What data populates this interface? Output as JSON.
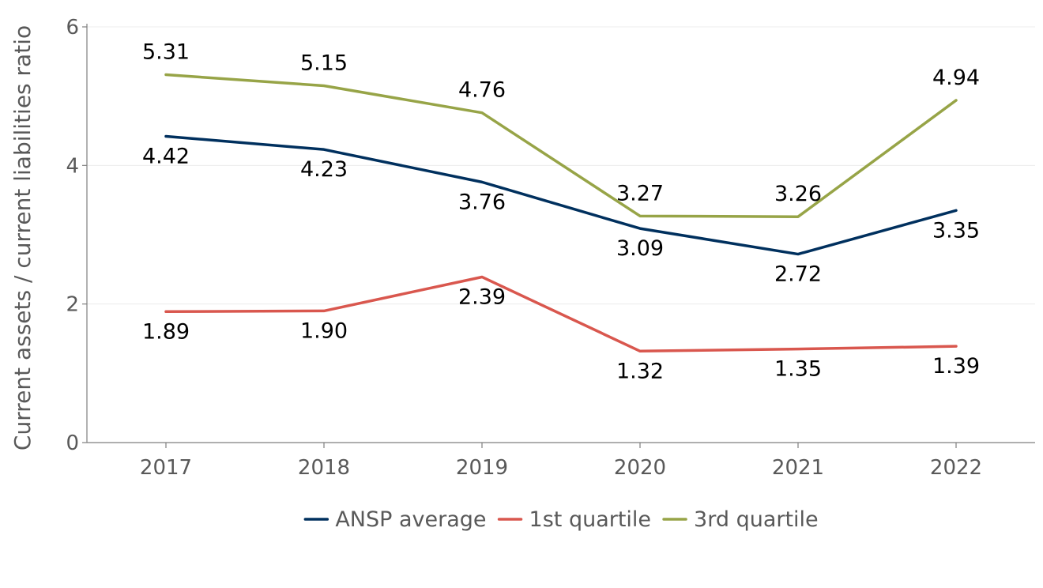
{
  "chart_data": {
    "type": "line",
    "title": "",
    "xlabel": "",
    "ylabel": "Current assets / current liabilities ratio",
    "categories": [
      "2017",
      "2018",
      "2019",
      "2020",
      "2021",
      "2022"
    ],
    "ylim": [
      0,
      6
    ],
    "yticks": [
      0,
      2,
      4,
      6
    ],
    "grid": true,
    "legend_position": "bottom",
    "series": [
      {
        "name": "ANSP average",
        "color": "#00305e",
        "values": [
          4.42,
          4.23,
          3.76,
          3.09,
          2.72,
          3.35
        ],
        "labels": [
          "4.42",
          "4.23",
          "3.76",
          "3.09",
          "2.72",
          "3.35"
        ]
      },
      {
        "name": "1st quartile",
        "color": "#d9574e",
        "values": [
          1.89,
          1.9,
          2.39,
          1.32,
          1.35,
          1.39
        ],
        "labels": [
          "1.89",
          "1.90",
          "2.39",
          "1.32",
          "1.35",
          "1.39"
        ]
      },
      {
        "name": "3rd quartile",
        "color": "#97a447",
        "values": [
          5.31,
          5.15,
          4.76,
          3.27,
          3.26,
          4.94
        ],
        "labels": [
          "5.31",
          "5.15",
          "4.76",
          "3.27",
          "3.26",
          "4.94"
        ]
      }
    ]
  }
}
